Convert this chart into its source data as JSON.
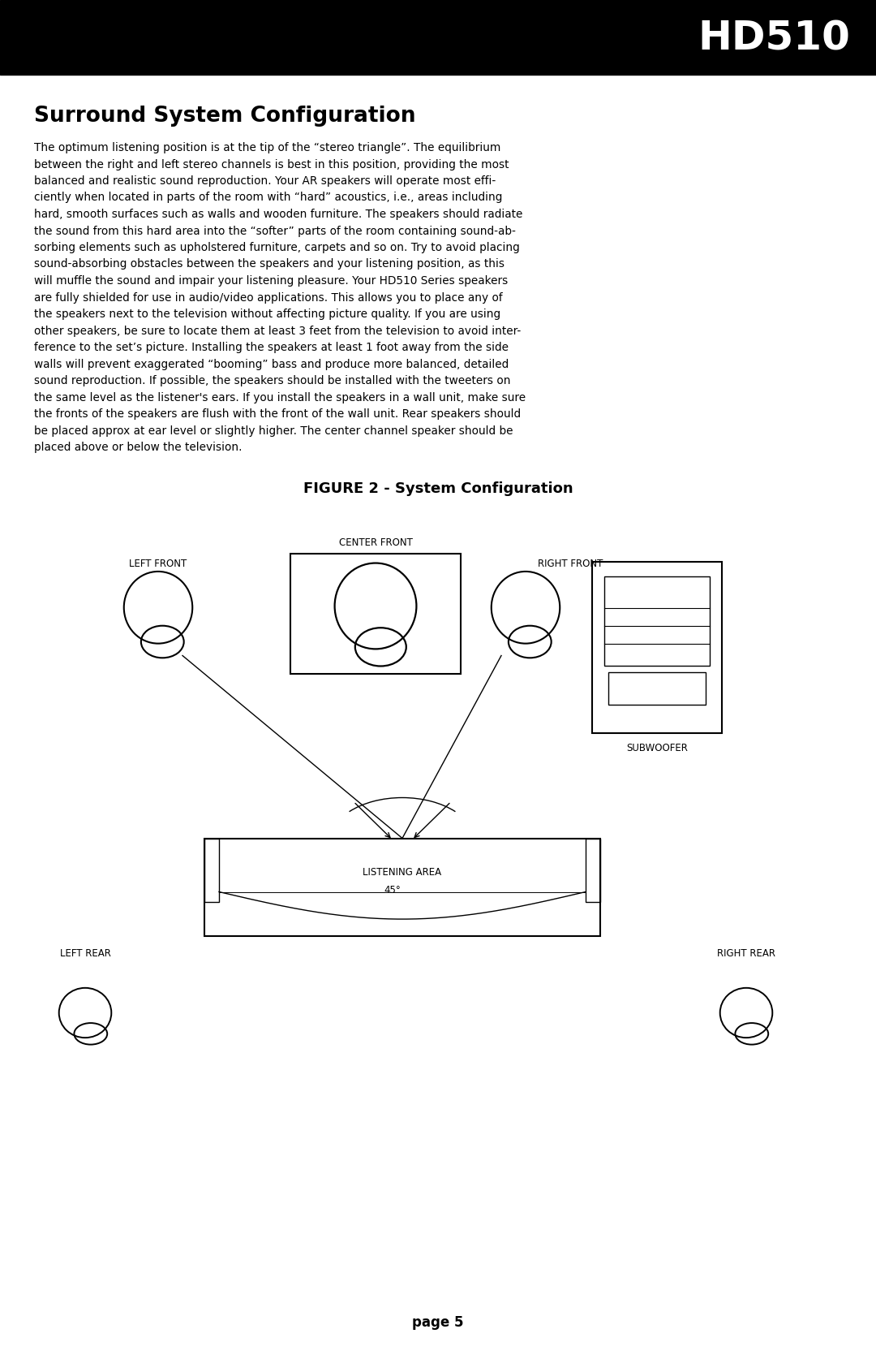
{
  "title": "HD510",
  "section_title": "Surround System Configuration",
  "body_text": "The optimum listening position is at the tip of the “stereo triangle”. The equilibrium\nbetween the right and left stereo channels is best in this position, providing the most\nbalanced and realistic sound reproduction. Your AR speakers will operate most effi-\nciently when located in parts of the room with “hard” acoustics, i.e., areas including\nhard, smooth surfaces such as walls and wooden furniture. The speakers should radiate\nthe sound from this hard area into the “softer” parts of the room containing sound-ab-\nsorbing elements such as upholstered furniture, carpets and so on. Try to avoid placing\nsound-absorbing obstacles between the speakers and your listening position, as this\nwill muffle the sound and impair your listening pleasure. Your HD510 Series speakers\nare fully shielded for use in audio/video applications. This allows you to place any of\nthe speakers next to the television without affecting picture quality. If you are using\nother speakers, be sure to locate them at least 3 feet from the television to avoid inter-\nference to the set’s picture. Installing the speakers at least 1 foot away from the side\nwalls will prevent exaggerated “booming” bass and produce more balanced, detailed\nsound reproduction. If possible, the speakers should be installed with the tweeters on\nthe same level as the listener's ears. If you install the speakers in a wall unit, make sure\nthe fronts of the speakers are flush with the front of the wall unit. Rear speakers should\nbe placed approx at ear level or slightly higher. The center channel speaker should be\nplaced above or below the television.",
  "figure_title": "FIGURE 2 - System Configuration",
  "page_label": "page 5",
  "bg_color": "#ffffff",
  "text_color": "#000000",
  "header_bg": "#000000",
  "header_text": "#ffffff"
}
